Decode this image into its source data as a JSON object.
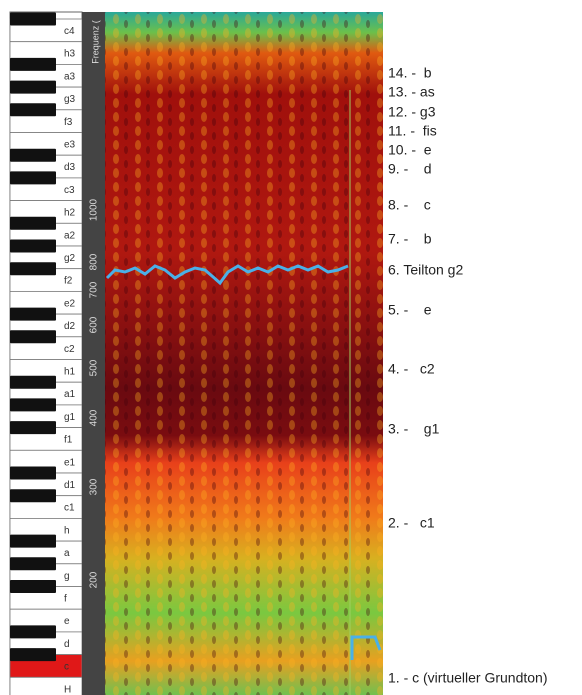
{
  "keyboard": {
    "keys": [
      "c4",
      "h3",
      "a3",
      "g3",
      "f3",
      "e3",
      "d3",
      "c3",
      "h2",
      "a2",
      "g2",
      "f2",
      "e2",
      "d2",
      "c2",
      "h1",
      "a1",
      "g1",
      "f1",
      "e1",
      "d1",
      "c1",
      "h",
      "a",
      "g",
      "f",
      "e",
      "d",
      "c",
      "H"
    ]
  },
  "frequency_axis": {
    "title": "Frequenz (",
    "labels": [
      "1000",
      "800",
      "700",
      "600",
      "500",
      "400",
      "300",
      "200"
    ]
  },
  "harmonics": [
    "14. -  b",
    "13. - as",
    "12. - g3",
    "11. -  fis",
    "10. -  e",
    "9. -    d",
    "8. -    c",
    "7. -    b",
    "6. Teilton g2",
    "5. -    e",
    "4. -   c2",
    "3. -    g1",
    "2. -   c1",
    "1. - c (virtueller Grundton)"
  ]
}
